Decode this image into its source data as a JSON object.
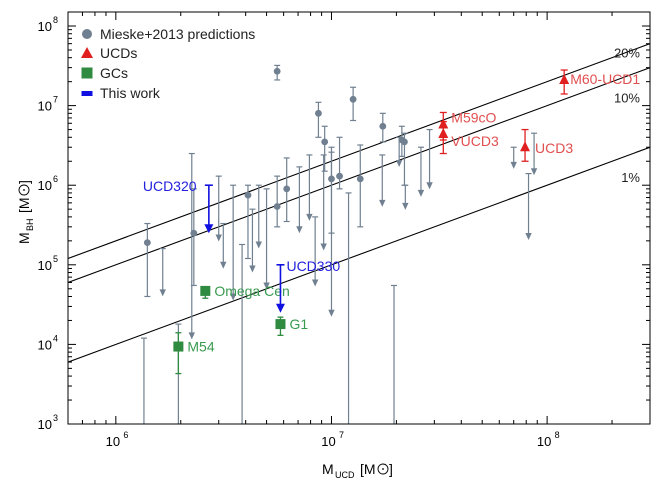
{
  "chart_data": {
    "type": "scatter",
    "xlabel_main": "M",
    "xlabel_sub": "UCD",
    "xlabel_unit": "[M",
    "xlabel_close": "]",
    "ylabel_main": "M",
    "ylabel_sub": "BH",
    "ylabel_unit": "[M",
    "ylabel_close": "]",
    "x_scale": "log",
    "y_scale": "log",
    "xlim": [
      600000,
      300000000
    ],
    "ylim": [
      1000,
      150000000
    ],
    "x_ticks": [
      {
        "base": "10",
        "exp": "6",
        "value": 1000000
      },
      {
        "base": "10",
        "exp": "7",
        "value": 10000000
      },
      {
        "base": "10",
        "exp": "8",
        "value": 100000000
      }
    ],
    "y_ticks": [
      {
        "base": "10",
        "exp": "3",
        "value": 1000
      },
      {
        "base": "10",
        "exp": "4",
        "value": 10000
      },
      {
        "base": "10",
        "exp": "5",
        "value": 100000
      },
      {
        "base": "10",
        "exp": "6",
        "value": 1000000
      },
      {
        "base": "10",
        "exp": "7",
        "value": 10000000
      },
      {
        "base": "10",
        "exp": "8",
        "value": 100000000
      }
    ],
    "legend": {
      "placement": "top-left",
      "entries": [
        {
          "label": "Mieske+2013 predictions",
          "marker": "circle",
          "color": "#708090"
        },
        {
          "label": "UCDs",
          "marker": "triangle",
          "color": "#e02020"
        },
        {
          "label": "GCs",
          "marker": "square",
          "color": "#2e8b40"
        },
        {
          "label": "This work",
          "marker": "bar",
          "color": "#1010e0"
        }
      ]
    },
    "reference_lines": [
      {
        "label": "20%",
        "fraction": 0.2
      },
      {
        "label": "10%",
        "fraction": 0.1
      },
      {
        "label": "1%",
        "fraction": 0.01
      }
    ],
    "mieske_points": [
      {
        "x": 1400000,
        "y": 190000,
        "lo": 40000,
        "hi": 330000
      },
      {
        "x": 2300000,
        "y": 250000,
        "lo": 55000,
        "hi": 900000
      },
      {
        "x": 4100000,
        "y": 750000,
        "lo": 120000,
        "hi": 1000000
      },
      {
        "x": 5600000,
        "y": 27000000,
        "lo": 21000000,
        "hi": 32000000
      },
      {
        "x": 5600000,
        "y": 540000,
        "lo": 300000,
        "hi": 1300000
      },
      {
        "x": 6200000,
        "y": 900000,
        "lo": 350000,
        "hi": 2200000
      },
      {
        "x": 8700000,
        "y": 8000000,
        "lo": 4000000,
        "hi": 11000000
      },
      {
        "x": 9300000,
        "y": 3500000,
        "lo": 1500000,
        "hi": 5500000
      },
      {
        "x": 10000000,
        "y": 1200000,
        "lo": 250000,
        "hi": 3000000
      },
      {
        "x": 10900000,
        "y": 1300000,
        "lo": 900000,
        "hi": 4000000
      },
      {
        "x": 12600000,
        "y": 12000000,
        "lo": 6500000,
        "hi": 17000000
      },
      {
        "x": 13600000,
        "y": 1200000,
        "lo": 300000,
        "hi": 3200000
      },
      {
        "x": 17300000,
        "y": 5500000,
        "lo": 3500000,
        "hi": 8000000
      },
      {
        "x": 21200000,
        "y": 3700000,
        "lo": 2300000,
        "hi": 5500000
      },
      {
        "x": 21800000,
        "y": 3500000,
        "lo": 1000000,
        "hi": 4500000
      }
    ],
    "mieske_upper_limits": [
      {
        "x": 1350000,
        "top": 12000,
        "bottom": 1000
      },
      {
        "x": 1650000,
        "top": 160000,
        "bottom": 45000
      },
      {
        "x": 1950000,
        "top": 18000,
        "bottom": 1000
      },
      {
        "x": 2250000,
        "top": 2500000,
        "bottom": 13000
      },
      {
        "x": 3000000,
        "top": 1300000,
        "bottom": 220000
      },
      {
        "x": 3150000,
        "top": 330000,
        "bottom": 100000
      },
      {
        "x": 3500000,
        "top": 1000000,
        "bottom": 40000
      },
      {
        "x": 3850000,
        "top": 180000,
        "bottom": 1000
      },
      {
        "x": 4300000,
        "top": 500000,
        "bottom": 90000
      },
      {
        "x": 4600000,
        "top": 1000000,
        "bottom": 180000
      },
      {
        "x": 5000000,
        "top": 900000,
        "bottom": 55000
      },
      {
        "x": 7100000,
        "top": 1700000,
        "bottom": 280000
      },
      {
        "x": 7900000,
        "top": 2400000,
        "bottom": 400000
      },
      {
        "x": 8400000,
        "top": 400000,
        "bottom": 60000
      },
      {
        "x": 9200000,
        "top": 2400000,
        "bottom": 170000
      },
      {
        "x": 10000000,
        "top": 2600000,
        "bottom": 25000
      },
      {
        "x": 12000000,
        "top": 800000,
        "bottom": 1000
      },
      {
        "x": 17200000,
        "top": 2400000,
        "bottom": 600000
      },
      {
        "x": 20600000,
        "top": 4000000,
        "bottom": 1900000
      },
      {
        "x": 22000000,
        "top": 1000000,
        "bottom": 550000
      },
      {
        "x": 26000000,
        "top": 3000000,
        "bottom": 800000
      },
      {
        "x": 28500000,
        "top": 5000000,
        "bottom": 1000000
      },
      {
        "x": 70000000,
        "top": 3000000,
        "bottom": 1800000
      },
      {
        "x": 87000000,
        "top": 4500000,
        "bottom": 1500000
      },
      {
        "x": 82000000,
        "top": 1400000,
        "bottom": 230000
      },
      {
        "x": 19500000,
        "top": 55000,
        "bottom": 1000
      }
    ],
    "ucds": [
      {
        "label": "M60-UCD1",
        "x": 120000000,
        "y": 21000000,
        "lo": 14000000,
        "hi": 28000000
      },
      {
        "label": "M59cO",
        "x": 33000000,
        "y": 5800000,
        "lo": 3700000,
        "hi": 8200000
      },
      {
        "label": "VUCD3",
        "x": 33000000,
        "y": 4400000,
        "lo": 2500000,
        "hi": 6300000
      },
      {
        "label": "UCD3",
        "x": 79000000,
        "y": 3000000,
        "lo": 2000000,
        "hi": 5000000
      }
    ],
    "gcs": [
      {
        "label": "Omega Cen",
        "x": 2600000,
        "y": 47000,
        "lo": 38000,
        "hi": 52000
      },
      {
        "label": "G1",
        "x": 5800000,
        "y": 18000,
        "lo": 13000,
        "hi": 22000
      },
      {
        "label": "M54",
        "x": 1950000,
        "y": 9400,
        "lo": 4300,
        "hi": 14000
      }
    ],
    "this_work": [
      {
        "label": "UCD320",
        "x": 2700000,
        "top": 1000000,
        "bottom": 280000
      },
      {
        "label": "UCD330",
        "x": 5800000,
        "top": 100000,
        "bottom": 28000
      }
    ]
  }
}
